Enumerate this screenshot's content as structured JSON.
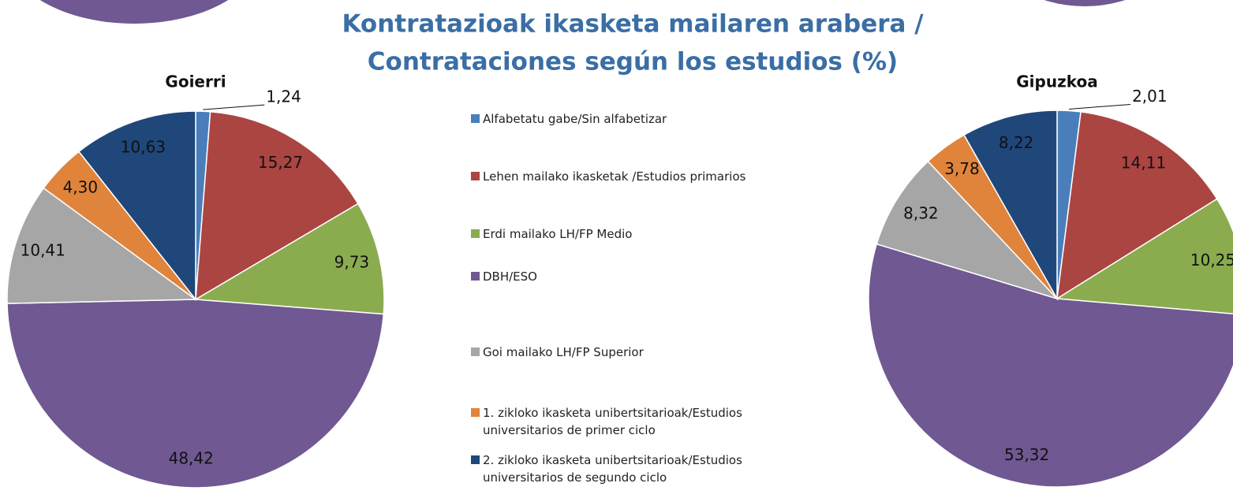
{
  "title": [
    "Kontratazioak  ikasketa mailaren arabera /",
    "Contrataciones según los estudios (%)"
  ],
  "legend": {
    "categories": [
      "Alfabetatu gabe/Sin alfabetizar",
      "Lehen mailako ikasketak /Estudios primarios",
      "Erdi mailako LH/FP Medio",
      "DBH/ESO",
      "Goi mailako LH/FP Superior",
      "1. zikloko ikasketa unibertsitarioak/Estudios universitarios de primer ciclo",
      "2. zikloko ikasketa unibertsitarioak/Estudios universitarios de segundo ciclo"
    ],
    "colors": [
      "#4a7ebb",
      "#ab4542",
      "#8aac4e",
      "#705892",
      "#a6a6a6",
      "#e0843c",
      "#1f477a"
    ]
  },
  "chart_data": [
    {
      "type": "pie",
      "title": "Goierri",
      "values": [
        1.24,
        15.27,
        9.73,
        48.42,
        10.41,
        4.3,
        10.63
      ],
      "value_labels": [
        "1,24",
        "15,27",
        "9,73",
        "48,42",
        "10,41",
        "4,30",
        "10,63"
      ]
    },
    {
      "type": "pie",
      "title": "Gipuzkoa",
      "values": [
        2.01,
        14.11,
        10.25,
        53.32,
        8.32,
        3.78,
        8.22
      ],
      "value_labels": [
        "2,01",
        "14,11",
        "10,25",
        "53,32",
        "8,32",
        "3,78",
        "8,22"
      ]
    }
  ]
}
